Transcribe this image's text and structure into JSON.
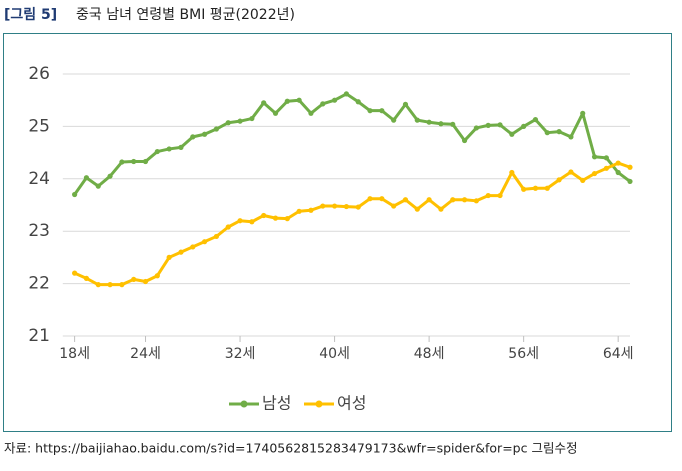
{
  "chart_data": {
    "type": "line",
    "label": "[그림 5]",
    "title": "중국 남녀 연령별 BMI 평균(2022년)",
    "source": "자료: https://baijiahao.baidu.com/s?id=1740562815283479173&wfr=spider&for=pc 그림수정",
    "x": [
      18,
      19,
      20,
      21,
      22,
      23,
      24,
      25,
      26,
      27,
      28,
      29,
      30,
      31,
      32,
      33,
      34,
      35,
      36,
      37,
      38,
      39,
      40,
      41,
      42,
      43,
      44,
      45,
      46,
      47,
      48,
      49,
      50,
      51,
      52,
      53,
      54,
      55,
      56,
      57,
      58,
      59,
      60,
      61,
      62,
      63,
      64,
      65
    ],
    "series": [
      {
        "name": "남성",
        "color": "#70ad47",
        "values": [
          23.7,
          24.02,
          23.86,
          24.05,
          24.32,
          24.33,
          24.33,
          24.52,
          24.57,
          24.6,
          24.8,
          24.85,
          24.95,
          25.07,
          25.1,
          25.15,
          25.45,
          25.25,
          25.48,
          25.5,
          25.25,
          25.43,
          25.5,
          25.62,
          25.47,
          25.3,
          25.3,
          25.12,
          25.42,
          25.12,
          25.08,
          25.05,
          25.04,
          24.73,
          24.97,
          25.02,
          25.03,
          24.85,
          25.0,
          25.13,
          24.88,
          24.9,
          24.8,
          25.25,
          24.42,
          24.4,
          24.12,
          23.95
        ]
      },
      {
        "name": "여성",
        "color": "#ffc000",
        "values": [
          22.2,
          22.1,
          21.98,
          21.98,
          21.98,
          22.08,
          22.04,
          22.15,
          22.5,
          22.6,
          22.7,
          22.8,
          22.9,
          23.08,
          23.2,
          23.18,
          23.3,
          23.25,
          23.24,
          23.38,
          23.4,
          23.48,
          23.48,
          23.47,
          23.46,
          23.62,
          23.62,
          23.48,
          23.6,
          23.42,
          23.6,
          23.42,
          23.6,
          23.6,
          23.58,
          23.68,
          23.68,
          24.12,
          23.8,
          23.82,
          23.82,
          23.98,
          24.13,
          23.97,
          24.1,
          24.2,
          24.3,
          24.22
        ]
      }
    ],
    "xlim": [
      17,
      65
    ],
    "xticks": [
      {
        "value": 18,
        "label": "18세"
      },
      {
        "value": 24,
        "label": "24세"
      },
      {
        "value": 32,
        "label": "32세"
      },
      {
        "value": 40,
        "label": "40세"
      },
      {
        "value": 48,
        "label": "48세"
      },
      {
        "value": 56,
        "label": "56세"
      },
      {
        "value": 64,
        "label": "64세"
      }
    ],
    "ylim": [
      21,
      26
    ],
    "yticks": [
      21,
      22,
      23,
      24,
      25,
      26
    ],
    "grid": true,
    "legend": "bottom"
  }
}
